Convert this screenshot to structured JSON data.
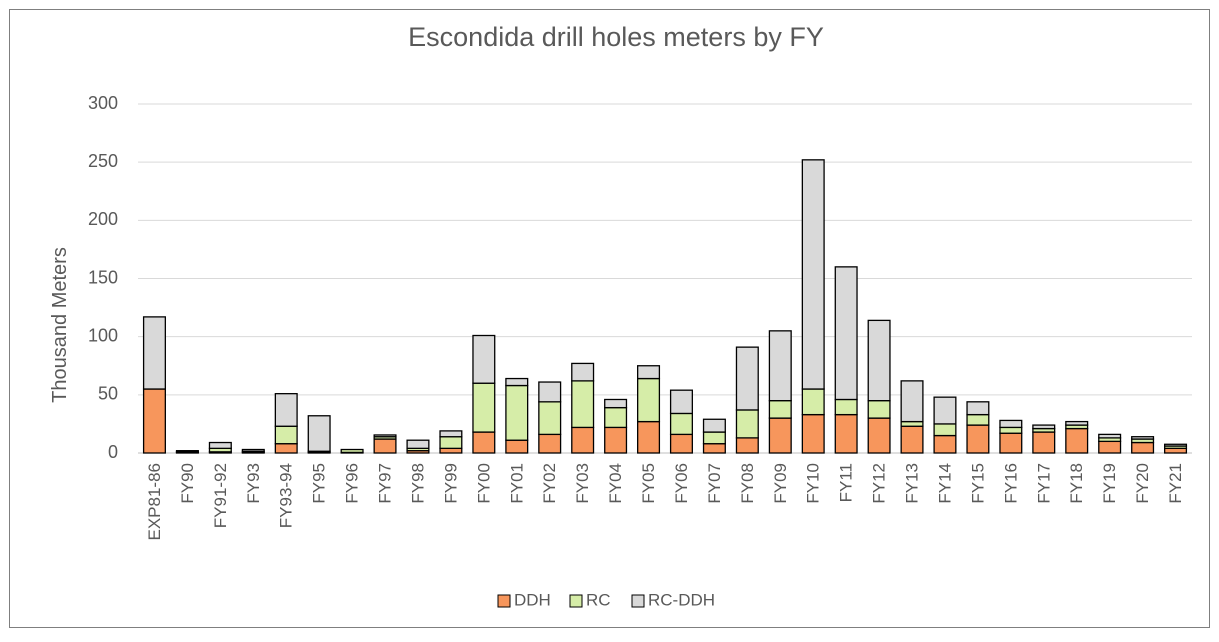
{
  "chart_data": {
    "type": "stacked_bar",
    "title": "Escondida drill holes meters by FY",
    "y_label": "Thousand Meters",
    "categories": [
      "EXP81-86",
      "FY90",
      "FY91-92",
      "FY93",
      "FY93-94",
      "FY95",
      "FY96",
      "FY97",
      "FY98",
      "FY99",
      "FY00",
      "FY01",
      "FY02",
      "FY03",
      "FY04",
      "FY05",
      "FY06",
      "FY07",
      "FY08",
      "FY09",
      "FY10",
      "FY11",
      "FY12",
      "FY13",
      "FY14",
      "FY15",
      "FY16",
      "FY17",
      "FY18",
      "FY19",
      "FY20",
      "FY21"
    ],
    "series": [
      {
        "name": "DDH",
        "color": "#f7965c",
        "values": [
          55,
          0.5,
          1,
          0.5,
          8,
          0.5,
          0.5,
          12,
          2,
          4,
          18,
          11,
          16,
          22,
          22,
          27,
          16,
          8,
          13,
          30,
          33,
          33,
          30,
          23,
          15,
          24,
          17,
          18,
          21,
          10,
          9,
          4
        ]
      },
      {
        "name": "RC",
        "color": "#d6eda8",
        "values": [
          0,
          0.5,
          3,
          1,
          15,
          1,
          2.5,
          2,
          2,
          10,
          42,
          47,
          28,
          40,
          17,
          37,
          18,
          10,
          24,
          15,
          22,
          13,
          15,
          4,
          10,
          9,
          5,
          3,
          3,
          3,
          3,
          2
        ]
      },
      {
        "name": "RC-DDH",
        "color": "#d9d9d9",
        "values": [
          62,
          1,
          5,
          1.5,
          28,
          30.5,
          0,
          1.5,
          7,
          5,
          41,
          6,
          17,
          15,
          7,
          11,
          20,
          11,
          54,
          60,
          197,
          114,
          69,
          35,
          23,
          11,
          6,
          3,
          3,
          3,
          2,
          1.5
        ]
      }
    ],
    "ylim": [
      0,
      300
    ],
    "yticks": [
      0,
      50,
      100,
      150,
      200,
      250,
      300
    ],
    "grid": true,
    "legend": "bottom"
  }
}
